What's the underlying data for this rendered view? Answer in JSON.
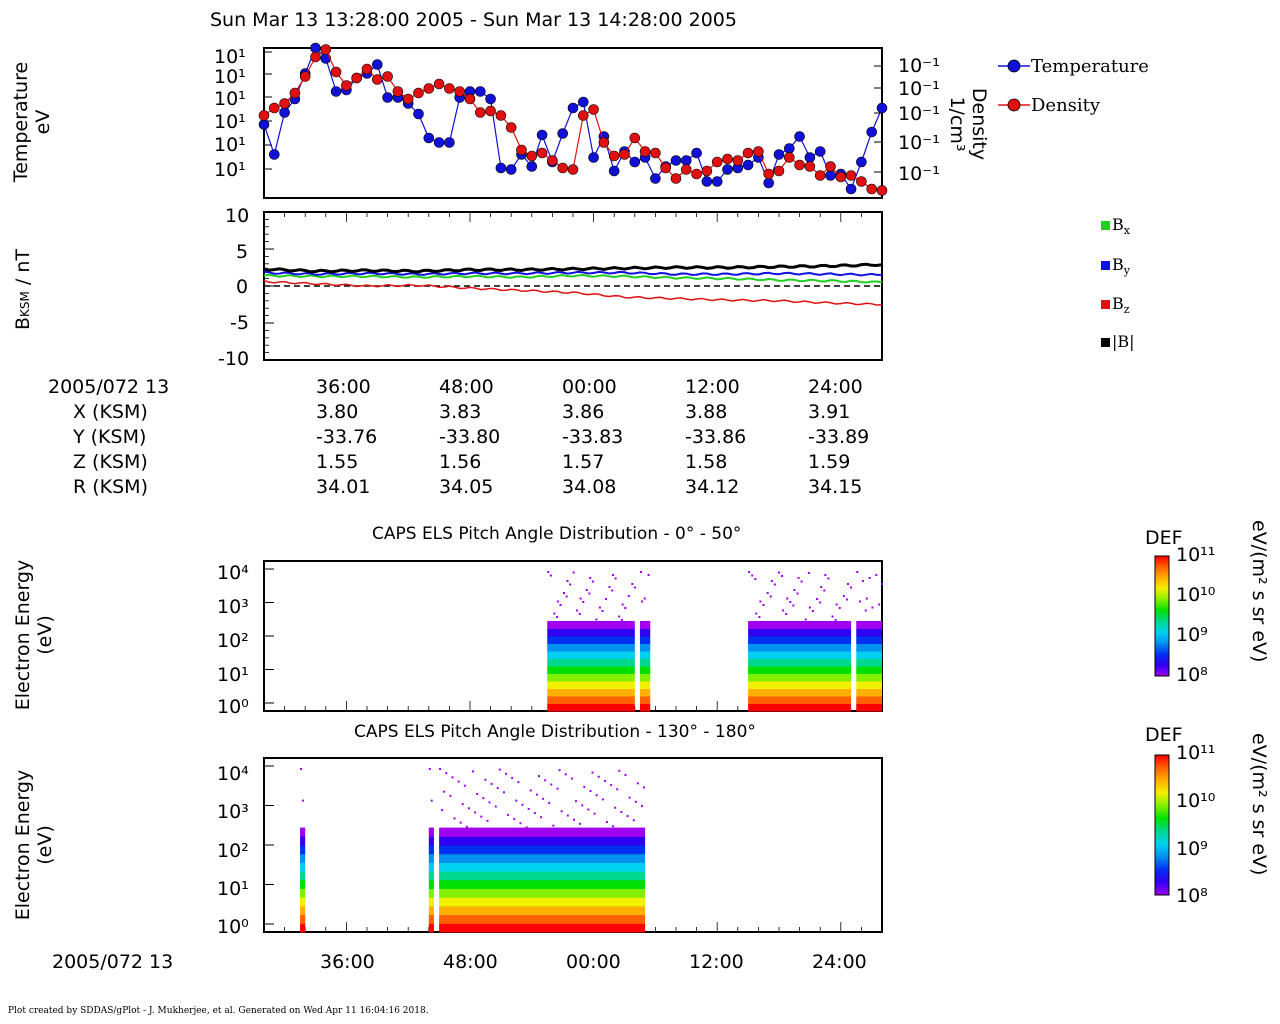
{
  "page": {
    "title": "Sun Mar 13 13:28:00 2005 - Sun Mar 13 14:28:00 2005",
    "footer": "Plot created by SDDAS/gPlot - J. Mukherjee, et al.  Generated on Wed Apr 11 16:04:16 2018."
  },
  "colors": {
    "temperature": "#1010d8",
    "density": "#e01010",
    "bx": "#20d020",
    "by": "#1010e0",
    "bz": "#e01010",
    "bmag": "#000000"
  },
  "chart_data": [
    {
      "type": "line",
      "ylabel": "Temperature\neV",
      "y2label": "Density\n1/cm³",
      "legend": [
        "Temperature",
        "Density"
      ],
      "legend_position": "right",
      "left_ticks": [
        "10¹",
        "10¹",
        "10¹",
        "10¹",
        "10¹",
        "10¹"
      ],
      "right_ticks": [
        "10⁻¹",
        "10⁻¹",
        "10⁻¹",
        "10⁻¹",
        "10⁻¹"
      ],
      "x_minutes": [
        0,
        1,
        2,
        3,
        4,
        5,
        6,
        7,
        8,
        9,
        10,
        11,
        12,
        13,
        14,
        15,
        16,
        17,
        18,
        19,
        20,
        21,
        22,
        23,
        24,
        25,
        26,
        27,
        28,
        29,
        30,
        31,
        32,
        33,
        34,
        35,
        36,
        37,
        38,
        39,
        40,
        41,
        42,
        43,
        44,
        45,
        46,
        47,
        48,
        49,
        50,
        51,
        52,
        53,
        54,
        55,
        56,
        57,
        58,
        59,
        60
      ],
      "series": [
        {
          "name": "Temperature",
          "values": [
            0.49,
            0.29,
            0.57,
            0.66,
            0.83,
            1.0,
            0.93,
            0.71,
            0.72,
            0.8,
            0.83,
            0.89,
            0.67,
            0.67,
            0.63,
            0.56,
            0.4,
            0.37,
            0.37,
            0.67,
            0.71,
            0.71,
            0.66,
            0.2,
            0.19,
            0.29,
            0.21,
            0.42,
            0.24,
            0.43,
            0.6,
            0.64,
            0.27,
            0.41,
            0.18,
            0.31,
            0.24,
            0.27,
            0.13,
            0.21,
            0.25,
            0.25,
            0.3,
            0.11,
            0.11,
            0.19,
            0.2,
            0.22,
            0.27,
            0.1,
            0.29,
            0.33,
            0.41,
            0.27,
            0.31,
            0.15,
            0.16,
            0.06,
            0.24,
            0.44,
            0.6
          ]
        },
        {
          "name": "Density",
          "values": [
            0.55,
            0.6,
            0.63,
            0.7,
            0.81,
            0.94,
            0.99,
            0.84,
            0.75,
            0.8,
            0.86,
            0.79,
            0.81,
            0.71,
            0.66,
            0.7,
            0.73,
            0.76,
            0.73,
            0.71,
            0.66,
            0.57,
            0.58,
            0.55,
            0.47,
            0.32,
            0.28,
            0.3,
            0.25,
            0.2,
            0.19,
            0.55,
            0.59,
            0.37,
            0.28,
            0.29,
            0.4,
            0.31,
            0.3,
            0.2,
            0.13,
            0.19,
            0.16,
            0.18,
            0.24,
            0.26,
            0.25,
            0.3,
            0.31,
            0.16,
            0.18,
            0.27,
            0.22,
            0.21,
            0.15,
            0.21,
            0.14,
            0.15,
            0.11,
            0.06,
            0.05
          ]
        }
      ]
    },
    {
      "type": "line",
      "ylabel": "B_KSM / nT",
      "ylim": [
        -10,
        10
      ],
      "yticks": [
        "10",
        "5",
        "0",
        "-5",
        "-10"
      ],
      "legend": [
        "Bx",
        "By",
        "Bz",
        "|B|"
      ],
      "legend_position": "right",
      "x_minutes": [
        0,
        5,
        10,
        15,
        20,
        25,
        30,
        35,
        40,
        45,
        50,
        55,
        60
      ],
      "series": [
        {
          "name": "Bx",
          "values": [
            1.4,
            1.3,
            1.3,
            1.2,
            1.3,
            1.2,
            1.4,
            1.3,
            1.1,
            1.0,
            0.8,
            0.7,
            0.5
          ]
        },
        {
          "name": "By",
          "values": [
            1.8,
            1.6,
            1.7,
            1.6,
            1.7,
            1.7,
            1.8,
            1.8,
            1.6,
            1.6,
            1.7,
            1.6,
            1.5
          ]
        },
        {
          "name": "Bz",
          "values": [
            0.6,
            0.3,
            0.0,
            0.1,
            -0.3,
            -0.6,
            -0.9,
            -1.5,
            -1.7,
            -1.9,
            -2.0,
            -2.3,
            -2.5
          ]
        },
        {
          "name": "|B|",
          "values": [
            2.3,
            2.0,
            2.1,
            2.0,
            2.2,
            2.2,
            2.3,
            2.4,
            2.5,
            2.5,
            2.6,
            2.7,
            2.9
          ]
        }
      ]
    },
    {
      "type": "heatmap",
      "title": "CAPS ELS Pitch Angle Distribution - 0° - 50°",
      "ylabel": "Electron Energy\n(eV)",
      "yticks": [
        "10⁴",
        "10³",
        "10²",
        "10¹",
        "10⁰"
      ],
      "colorbar_label": "DEF",
      "colorbar_units": "eV/(m² s sr eV)",
      "colorbar_ticks": [
        "10¹¹",
        "10¹⁰",
        "10⁹",
        "10⁸"
      ],
      "data_intervals_min": [
        [
          27.5,
          36
        ],
        [
          36.5,
          37.5
        ],
        [
          47,
          57
        ],
        [
          57.5,
          60
        ]
      ]
    },
    {
      "type": "heatmap",
      "title": "CAPS ELS Pitch Angle Distribution - 130° - 180°",
      "ylabel": "Electron Energy\n(eV)",
      "yticks": [
        "10⁴",
        "10³",
        "10²",
        "10¹",
        "10⁰"
      ],
      "colorbar_label": "DEF",
      "colorbar_units": "eV/(m² s sr eV)",
      "colorbar_ticks": [
        "10¹¹",
        "10¹⁰",
        "10⁹",
        "10⁸"
      ],
      "data_intervals_min": [
        [
          3.5,
          4
        ],
        [
          16,
          16.5
        ],
        [
          17,
          37
        ]
      ]
    }
  ],
  "ephemeris": {
    "labels": [
      "2005/072 13",
      "X (KSM)",
      "Y (KSM)",
      "Z (KSM)",
      "R (KSM)"
    ],
    "times": [
      "36:00",
      "48:00",
      "00:00",
      "12:00",
      "24:00"
    ],
    "X": [
      "3.80",
      "3.83",
      "3.86",
      "3.88",
      "3.91"
    ],
    "Y": [
      "-33.76",
      "-33.80",
      "-33.83",
      "-33.86",
      "-33.89"
    ],
    "Z": [
      "1.55",
      "1.56",
      "1.57",
      "1.58",
      "1.59"
    ],
    "R": [
      "34.01",
      "34.05",
      "34.08",
      "34.12",
      "34.15"
    ]
  },
  "bottom_axis": {
    "date": "2005/072 13",
    "times": [
      "36:00",
      "48:00",
      "00:00",
      "12:00",
      "24:00"
    ]
  }
}
